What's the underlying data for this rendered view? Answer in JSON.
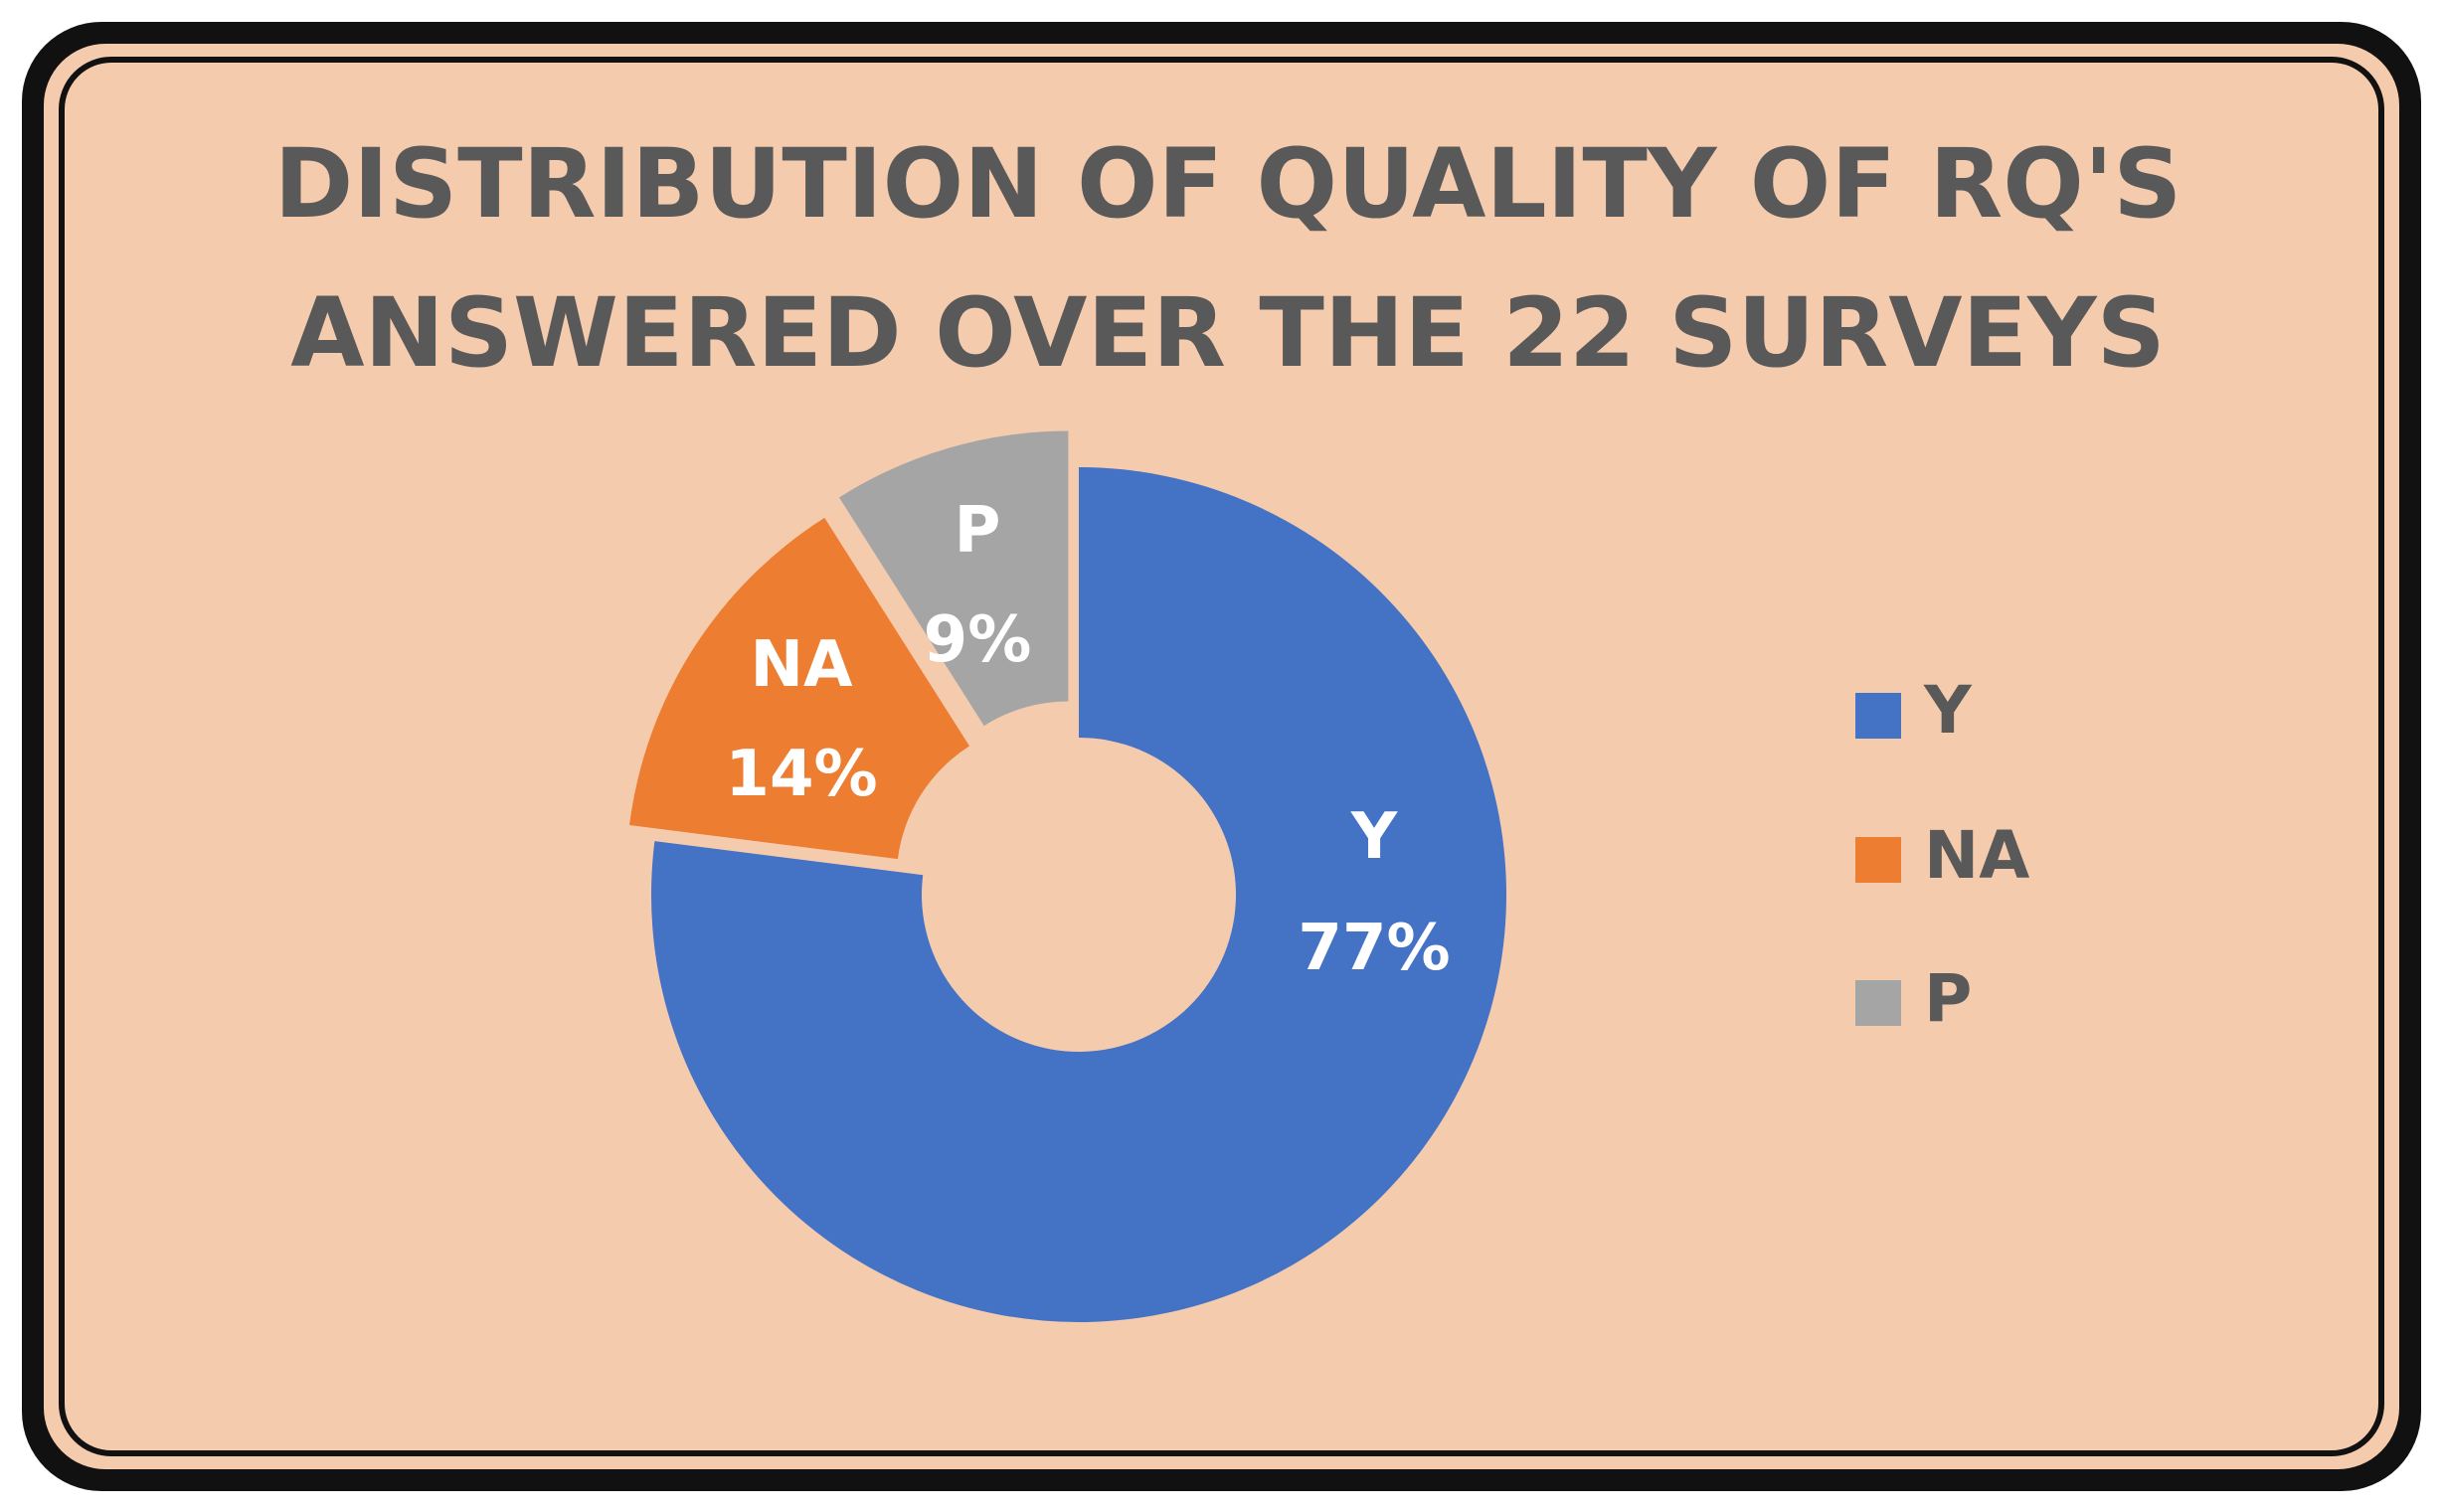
{
  "chart_data": {
    "type": "pie",
    "variant": "donut",
    "title_lines": [
      "DISTRIBUTION OF QUALITY OF RQ'S",
      "ANSWERED OVER THE 22 SURVEYS"
    ],
    "slices": [
      {
        "name": "Y",
        "percent": 77,
        "label": "77%",
        "color": "#4472C4"
      },
      {
        "name": "NA",
        "percent": 14,
        "label": "14%",
        "color": "#ED7D31"
      },
      {
        "name": "P",
        "percent": 9,
        "label": "9%",
        "color": "#A5A5A5"
      }
    ],
    "legend_position": "right",
    "background_color": "#F5CBAE",
    "border_color": "#000000",
    "title_color": "#595959"
  }
}
